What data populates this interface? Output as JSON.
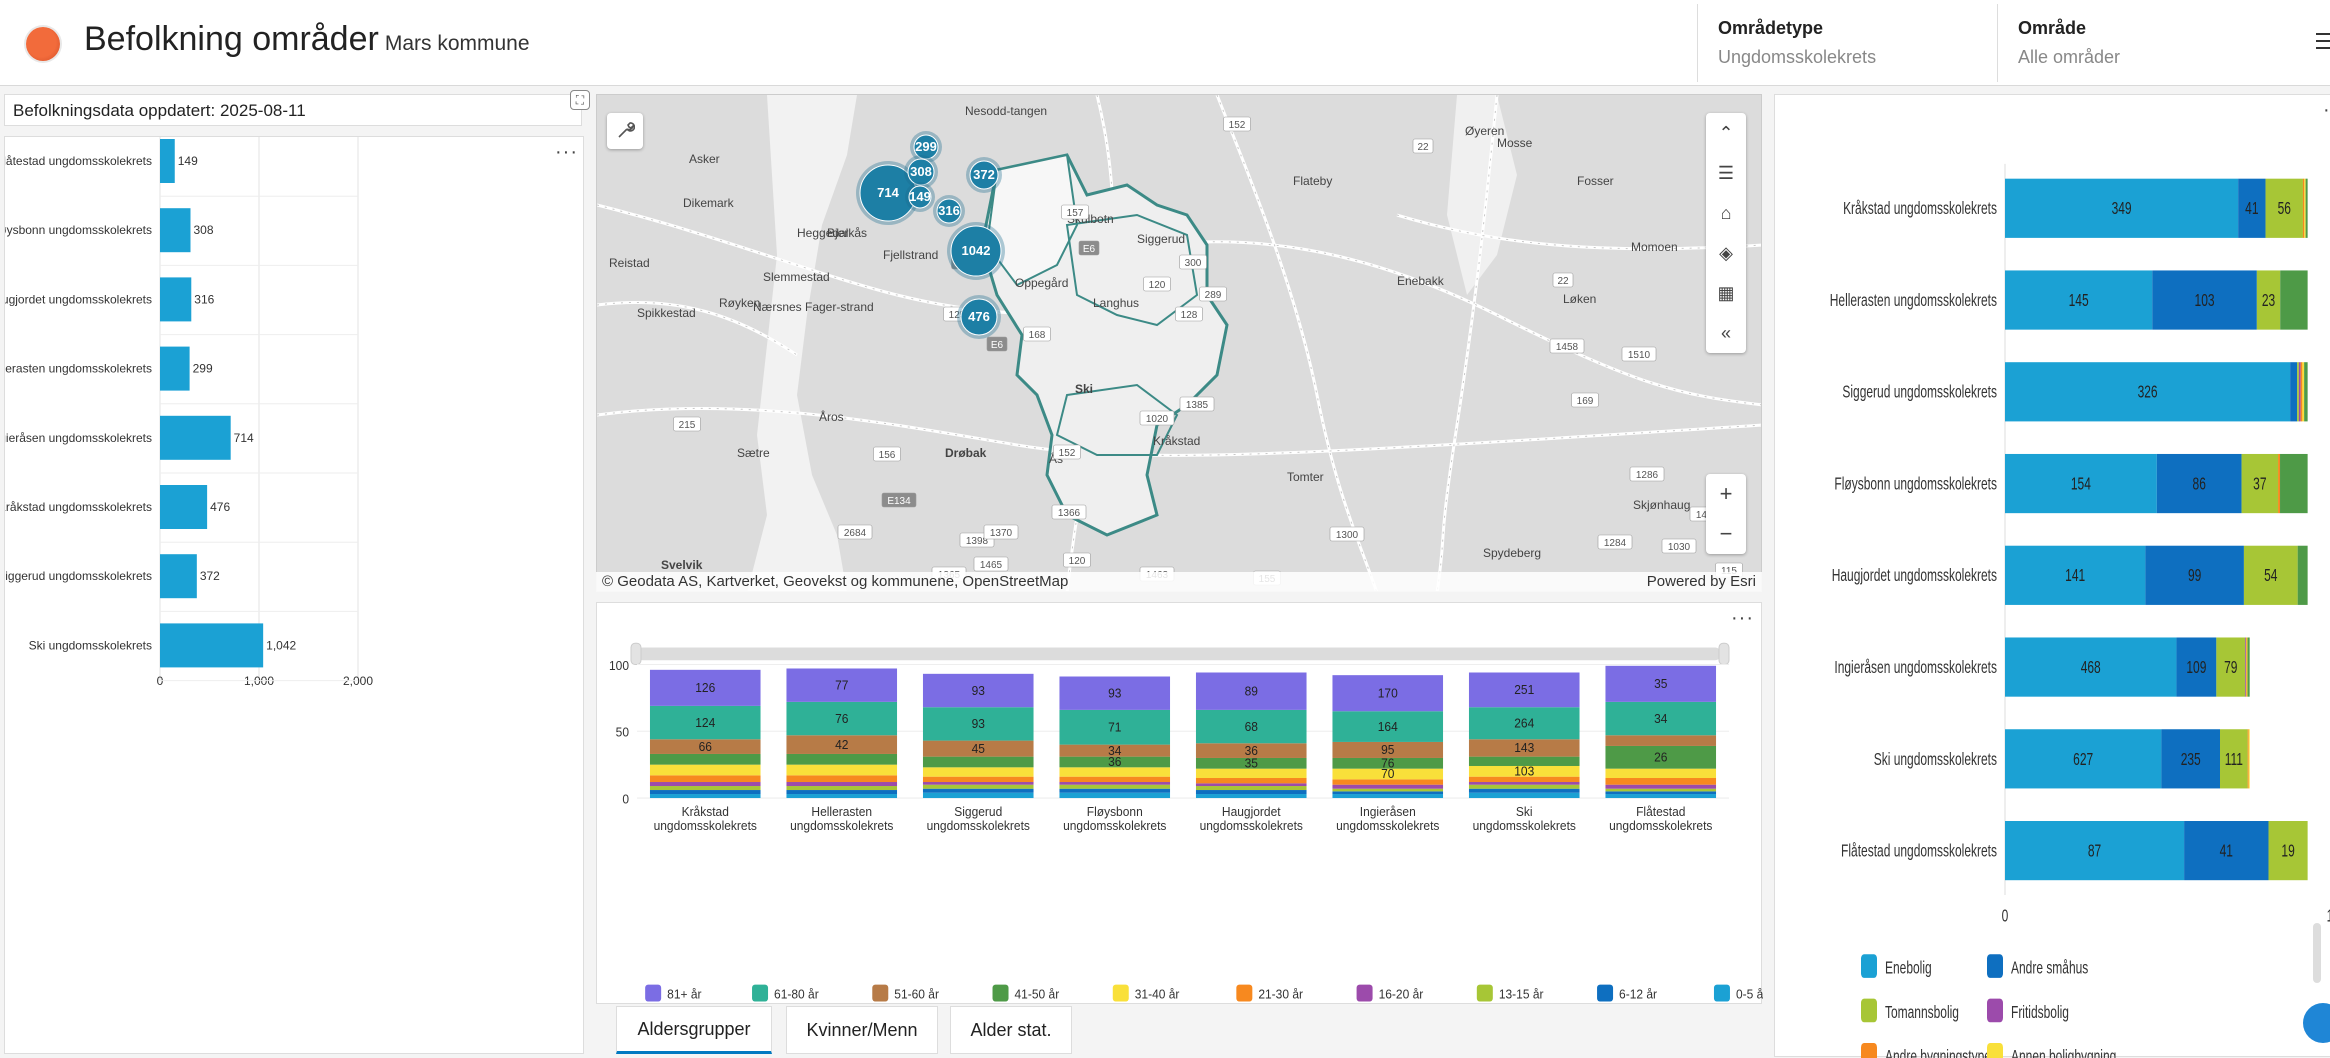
{
  "header": {
    "title": "Befolkning områder",
    "subtitle": "Mars kommune",
    "filters": [
      {
        "label": "Områdetype",
        "value": "Ungdomsskolekrets"
      },
      {
        "label": "Område",
        "value": "Alle områder"
      }
    ]
  },
  "updated_text": "Befolkningsdata oppdatert: 2025-08-11",
  "left_chart": {
    "categories": [
      "Flåtestad ungdomsskolekrets",
      "Fløysbonn ungdomsskolekrets",
      "Haugjordet ungdomsskolekrets",
      "Hellerasten ungdomsskolekrets",
      "Ingieråsen ungdomsskolekrets",
      "Kråkstad ungdomsskolekrets",
      "Siggerud ungdomsskolekrets",
      "Ski ungdomsskolekrets"
    ],
    "value_labels": [
      "149",
      "308",
      "316",
      "299",
      "714",
      "476",
      "372",
      "1,042"
    ],
    "x_ticks": [
      "0",
      "1,000",
      "2,000"
    ],
    "bar_color": "#1ba1d4"
  },
  "map": {
    "attribution": "© Geodata AS, Kartverket, Geovekst og kommunene, OpenStreetMap",
    "powered_by": "Powered by Esri",
    "clusters": [
      "714",
      "299",
      "308",
      "149",
      "372",
      "316",
      "1042",
      "476"
    ],
    "places": [
      "Nesodd-tangen",
      "Asker",
      "Dikemark",
      "Heggedal",
      "Bjerkås",
      "Reistad",
      "Fjellstrand",
      "Slemmestad",
      "Spikkestad",
      "Røyken",
      "Nærsnes",
      "Fager-strand",
      "Åros",
      "Sætre",
      "Drøbak",
      "Ås",
      "Tomter",
      "Flateby",
      "Enebakk",
      "Mosse",
      "Fosser",
      "Momoen",
      "Løken",
      "Skjønhaug",
      "Spydeberg",
      "Svelvik",
      "Oppegård",
      "Ski",
      "Kråkstad",
      "Skulbotn",
      "Langhus",
      "Siggerud",
      "Øyeren"
    ],
    "road_labels": [
      "E6",
      "E6",
      "215",
      "156",
      "168",
      "1398",
      "E134",
      "2684",
      "1385",
      "1365",
      "152",
      "289",
      "152",
      "1300",
      "22",
      "22",
      "169",
      "1458",
      "1284",
      "1510",
      "1286",
      "1030",
      "1450",
      "125",
      "1020",
      "115",
      "155",
      "128",
      "300",
      "120",
      "1366",
      "1370",
      "1465",
      "1463",
      "120",
      "157",
      "E18"
    ],
    "tool_icons": [
      "collapse-up-icon",
      "legend-list-icon",
      "home-icon",
      "layers-icon",
      "qr-icon",
      "collapse-left-icon"
    ],
    "zoom_in": "+",
    "zoom_out": "−"
  },
  "stack_chart": {
    "categories": [
      "Kråkstad ungdomsskolekrets",
      "Hellerasten ungdomsskolekrets",
      "Siggerud ungdomsskolekrets",
      "Fløysbonn ungdomsskolekrets",
      "Haugjordet ungdomsskolekrets",
      "Ingieråsen ungdomsskolekrets",
      "Ski ungdomsskolekrets",
      "Flåtestad ungdomsskolekrets"
    ],
    "category_lines": [
      [
        "Kråkstad",
        "ungdomsskolekrets"
      ],
      [
        "Hellerasten",
        "ungdomsskolekrets"
      ],
      [
        "Siggerud",
        "ungdomsskolekrets"
      ],
      [
        "Fløysbonn",
        "ungdomsskolekrets"
      ],
      [
        "Haugjordet",
        "ungdomsskolekrets"
      ],
      [
        "Ingieråsen",
        "ungdomsskolekrets"
      ],
      [
        "Ski",
        "ungdomsskolekrets"
      ],
      [
        "Flåtestad",
        "ungdomsskolekrets"
      ]
    ],
    "y_ticks": [
      "100",
      "50",
      "0"
    ],
    "series": [
      {
        "name": "0-5 år",
        "color": "#1ba1d4"
      },
      {
        "name": "6-12 år",
        "color": "#0e6fc0"
      },
      {
        "name": "13-15 år",
        "color": "#a7c636"
      },
      {
        "name": "16-20 år",
        "color": "#9c4bab"
      },
      {
        "name": "21-30 år",
        "color": "#f7891f"
      },
      {
        "name": "31-40 år",
        "color": "#f9e03a"
      },
      {
        "name": "41-50 år",
        "color": "#4e9a47"
      },
      {
        "name": "51-60 år",
        "color": "#b77b47"
      },
      {
        "name": "61-80 år",
        "color": "#2fb197"
      },
      {
        "name": "81+ år",
        "color": "#7b6de4"
      }
    ],
    "segments_percent": [
      [
        3,
        3,
        3,
        3,
        5,
        8,
        8,
        11,
        25,
        27
      ],
      [
        3,
        3,
        3,
        3,
        5,
        8,
        8,
        14,
        25,
        25
      ],
      [
        4,
        3,
        3,
        2,
        4,
        7,
        8,
        12,
        25,
        25
      ],
      [
        4,
        3,
        3,
        2,
        4,
        7,
        8,
        9,
        26,
        25
      ],
      [
        3,
        3,
        3,
        2,
        4,
        7,
        8,
        11,
        25,
        28
      ],
      [
        3,
        2,
        2,
        3,
        4,
        8,
        8,
        12,
        23,
        27
      ],
      [
        4,
        3,
        3,
        2,
        4,
        8,
        7,
        13,
        24,
        26
      ],
      [
        3,
        2,
        2,
        3,
        5,
        7,
        17,
        8,
        25,
        27
      ]
    ],
    "labels": [
      {
        "81+ år": "126",
        "61-80 år": "124",
        "51-60 år": "66"
      },
      {
        "81+ år": "77",
        "61-80 år": "76",
        "51-60 år": "42"
      },
      {
        "81+ år": "93",
        "61-80 år": "93",
        "51-60 år": "45"
      },
      {
        "81+ år": "93",
        "61-80 år": "71",
        "51-60 år": "34",
        "41-50 år": "36"
      },
      {
        "81+ år": "89",
        "61-80 år": "68",
        "51-60 år": "36",
        "41-50 år": "35"
      },
      {
        "81+ år": "170",
        "61-80 år": "164",
        "51-60 år": "95",
        "41-50 år": "76",
        "31-40 år": "70"
      },
      {
        "81+ år": "251",
        "61-80 år": "264",
        "51-60 år": "143",
        "31-40 år": "103"
      },
      {
        "81+ år": "35",
        "61-80 år": "34",
        "41-50 år": "26"
      }
    ]
  },
  "tabs": [
    "Aldersgrupper",
    "Kvinner/Menn",
    "Alder stat."
  ],
  "right_chart": {
    "categories": [
      "Kråkstad ungdomsskolekrets",
      "Hellerasten ungdomsskolekrets",
      "Siggerud ungdomsskolekrets",
      "Fløysbonn ungdomsskolekrets",
      "Haugjordet ungdomsskolekrets",
      "Ingieråsen ungdomsskolekrets",
      "Ski ungdomsskolekrets",
      "Flåtestad ungdomsskolekrets"
    ],
    "x_ticks": [
      "0",
      "1"
    ],
    "series": [
      {
        "name": "Enebolig",
        "color": "#1ba1d4"
      },
      {
        "name": "Andre småhus",
        "color": "#0e6fc0"
      },
      {
        "name": "Tomannsbolig",
        "color": "#a7c636"
      },
      {
        "name": "Fritidsbolig",
        "color": "#9c4bab"
      },
      {
        "name": "Andre bygningstyper",
        "color": "#f7891f"
      },
      {
        "name": "Annen boligbygning",
        "color": "#f9e03a"
      },
      {
        "name": "Boligblokk",
        "color": "#4e9a47"
      }
    ],
    "values": [
      [
        349,
        41,
        56,
        0,
        2,
        2,
        3
      ],
      [
        145,
        103,
        23,
        0,
        0,
        0,
        27
      ],
      [
        326,
        8,
        2,
        2,
        2,
        2,
        4
      ],
      [
        154,
        86,
        37,
        0,
        2,
        0,
        28
      ],
      [
        141,
        99,
        54,
        0,
        0,
        0,
        10
      ],
      [
        468,
        109,
        79,
        2,
        2,
        2,
        6
      ],
      [
        627,
        235,
        111,
        0,
        4,
        4,
        0
      ],
      [
        87,
        41,
        19,
        0,
        0,
        0,
        0
      ]
    ],
    "value_labels": [
      [
        "349",
        "41",
        "56"
      ],
      [
        "145",
        "103",
        "23",
        "27"
      ],
      [
        "326"
      ],
      [
        "154",
        "86",
        "37",
        "28"
      ],
      [
        "141",
        "99",
        "54"
      ],
      [
        "468",
        "109",
        "79"
      ],
      [
        "627",
        "235",
        "111"
      ],
      [
        "87",
        "41",
        "19"
      ]
    ]
  }
}
